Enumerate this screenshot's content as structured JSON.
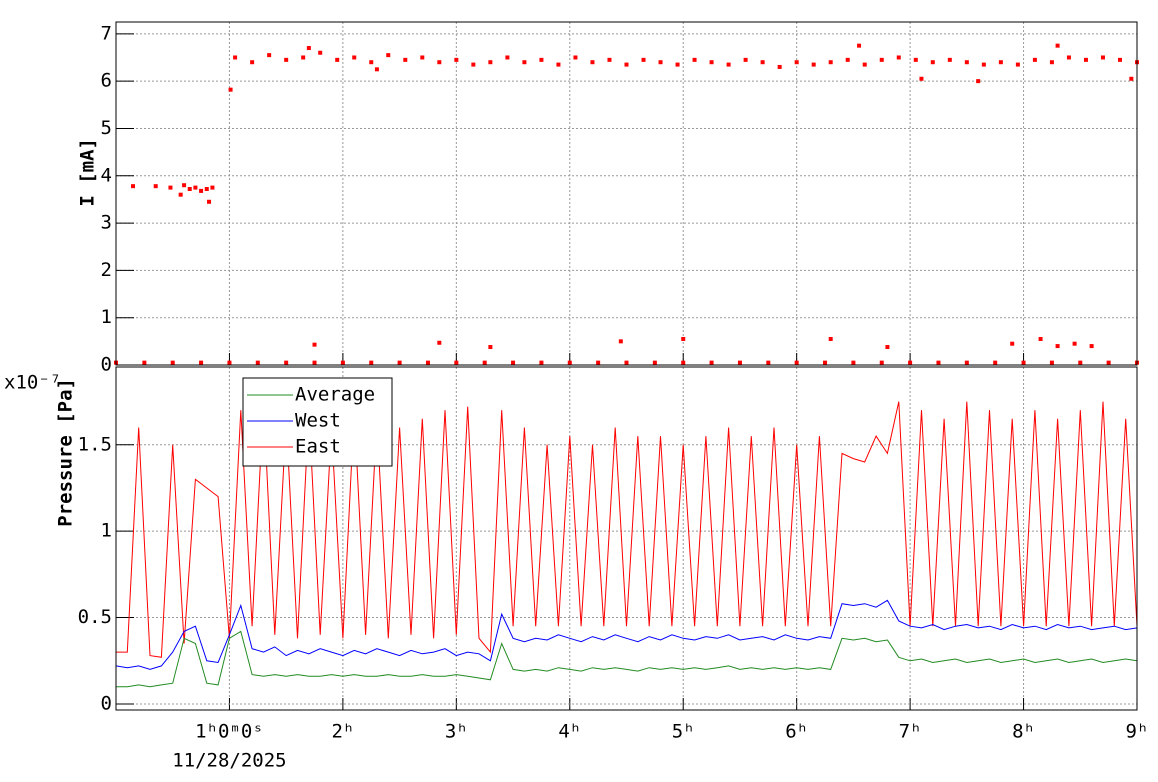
{
  "chart_data": [
    {
      "type": "scatter",
      "ylabel": "I [mA]",
      "color": "#ff0000",
      "xlim": [
        0,
        9
      ],
      "ylim": [
        0,
        7.25
      ],
      "yticks": [
        0,
        1,
        2,
        3,
        4,
        5,
        6,
        7
      ],
      "grid": true,
      "x": [
        0,
        0.25,
        0.5,
        0.75,
        1.0,
        1.25,
        1.5,
        1.75,
        2.0,
        2.25,
        2.5,
        2.75,
        3.0,
        3.25,
        3.5,
        3.75,
        4.0,
        4.25,
        4.5,
        4.75,
        5.0,
        5.25,
        5.5,
        5.75,
        6.0,
        6.25,
        6.5,
        6.75,
        7.0,
        7.25,
        7.5,
        7.75,
        8.0,
        8.25,
        8.5,
        8.75,
        9.0,
        1.75,
        2.85,
        3.3,
        4.45,
        5.0,
        6.3,
        6.8,
        7.9,
        8.15,
        8.3,
        8.45,
        8.6,
        0.15,
        0.35,
        0.48,
        0.57,
        0.6,
        0.65,
        0.7,
        0.75,
        0.8,
        0.82,
        0.85,
        1.01,
        1.05,
        1.2,
        1.35,
        1.5,
        1.65,
        1.8,
        1.95,
        2.1,
        2.25,
        2.4,
        2.55,
        2.7,
        2.85,
        3.0,
        3.15,
        3.3,
        3.45,
        3.6,
        3.75,
        3.9,
        4.05,
        4.2,
        4.35,
        4.5,
        4.65,
        4.8,
        4.95,
        5.1,
        5.25,
        5.4,
        5.55,
        5.7,
        5.85,
        6.0,
        6.15,
        6.3,
        6.45,
        6.6,
        6.75,
        6.9,
        7.05,
        7.2,
        7.35,
        7.5,
        7.65,
        7.8,
        7.95,
        8.1,
        8.25,
        8.4,
        8.55,
        8.7,
        8.85,
        9.0,
        1.7,
        6.55,
        7.1,
        7.6,
        8.3,
        8.95,
        2.3
      ],
      "values": [
        0.05,
        0.05,
        0.05,
        0.05,
        0.05,
        0.05,
        0.05,
        0.05,
        0.05,
        0.05,
        0.05,
        0.05,
        0.05,
        0.05,
        0.05,
        0.05,
        0.05,
        0.05,
        0.05,
        0.05,
        0.05,
        0.05,
        0.05,
        0.05,
        0.05,
        0.05,
        0.05,
        0.05,
        0.05,
        0.05,
        0.05,
        0.05,
        0.05,
        0.05,
        0.05,
        0.05,
        0.05,
        0.43,
        0.47,
        0.38,
        0.5,
        0.55,
        0.55,
        0.38,
        0.45,
        0.55,
        0.4,
        0.45,
        0.4,
        3.78,
        3.78,
        3.75,
        3.6,
        3.8,
        3.72,
        3.75,
        3.68,
        3.72,
        3.45,
        3.75,
        5.82,
        6.5,
        6.4,
        6.55,
        6.45,
        6.5,
        6.6,
        6.45,
        6.5,
        6.4,
        6.55,
        6.45,
        6.5,
        6.4,
        6.45,
        6.35,
        6.4,
        6.5,
        6.4,
        6.45,
        6.35,
        6.5,
        6.4,
        6.45,
        6.35,
        6.45,
        6.4,
        6.35,
        6.45,
        6.4,
        6.35,
        6.45,
        6.4,
        6.3,
        6.4,
        6.35,
        6.4,
        6.45,
        6.35,
        6.45,
        6.5,
        6.45,
        6.4,
        6.45,
        6.4,
        6.35,
        6.4,
        6.35,
        6.45,
        6.4,
        6.5,
        6.45,
        6.5,
        6.45,
        6.4,
        6.7,
        6.75,
        6.05,
        6.0,
        6.75,
        6.05,
        6.25
      ]
    },
    {
      "type": "line",
      "ylabel": "Pressure [Pa]",
      "y_multiplier": "x10⁻⁷",
      "x_date": "11/28/2025",
      "xlim": [
        0,
        9
      ],
      "ylim": [
        -0.035,
        1.95
      ],
      "yticks": [
        0,
        0.5,
        1,
        1.5
      ],
      "grid": true,
      "legend": "top-left",
      "xticks": [
        {
          "value": 1,
          "label": "1ʰ0ᵐ0ˢ"
        },
        {
          "value": 2,
          "label": "2ʰ"
        },
        {
          "value": 3,
          "label": "3ʰ"
        },
        {
          "value": 4,
          "label": "4ʰ"
        },
        {
          "value": 5,
          "label": "5ʰ"
        },
        {
          "value": 6,
          "label": "6ʰ"
        },
        {
          "value": 7,
          "label": "7ʰ"
        },
        {
          "value": 8,
          "label": "8ʰ"
        },
        {
          "value": 9,
          "label": "9ʰ"
        }
      ],
      "x": [
        0,
        0.1,
        0.2,
        0.3,
        0.4,
        0.5,
        0.6,
        0.7,
        0.8,
        0.9,
        1.0,
        1.1,
        1.2,
        1.3,
        1.4,
        1.5,
        1.6,
        1.7,
        1.8,
        1.9,
        2.0,
        2.1,
        2.2,
        2.3,
        2.4,
        2.5,
        2.6,
        2.7,
        2.8,
        2.9,
        3.0,
        3.1,
        3.2,
        3.3,
        3.4,
        3.5,
        3.6,
        3.7,
        3.8,
        3.9,
        4.0,
        4.1,
        4.2,
        4.3,
        4.4,
        4.5,
        4.6,
        4.7,
        4.8,
        4.9,
        5.0,
        5.1,
        5.2,
        5.3,
        5.4,
        5.5,
        5.6,
        5.7,
        5.8,
        5.9,
        6.0,
        6.1,
        6.2,
        6.3,
        6.4,
        6.5,
        6.6,
        6.7,
        6.8,
        6.9,
        7.0,
        7.1,
        7.2,
        7.3,
        7.4,
        7.5,
        7.6,
        7.7,
        7.8,
        7.9,
        8.0,
        8.1,
        8.2,
        8.3,
        8.4,
        8.5,
        8.6,
        8.7,
        8.8,
        8.9,
        9.0
      ],
      "series": [
        {
          "name": "Average",
          "color": "#228b22",
          "values": [
            0.1,
            0.1,
            0.11,
            0.1,
            0.11,
            0.12,
            0.38,
            0.35,
            0.12,
            0.11,
            0.38,
            0.42,
            0.17,
            0.16,
            0.17,
            0.16,
            0.17,
            0.16,
            0.16,
            0.17,
            0.16,
            0.17,
            0.16,
            0.16,
            0.17,
            0.16,
            0.16,
            0.17,
            0.16,
            0.16,
            0.17,
            0.16,
            0.15,
            0.14,
            0.35,
            0.2,
            0.19,
            0.2,
            0.19,
            0.21,
            0.2,
            0.19,
            0.21,
            0.2,
            0.21,
            0.2,
            0.19,
            0.21,
            0.2,
            0.21,
            0.2,
            0.21,
            0.2,
            0.21,
            0.22,
            0.2,
            0.21,
            0.2,
            0.21,
            0.2,
            0.21,
            0.2,
            0.21,
            0.2,
            0.38,
            0.37,
            0.38,
            0.36,
            0.37,
            0.27,
            0.25,
            0.26,
            0.24,
            0.25,
            0.26,
            0.24,
            0.25,
            0.26,
            0.24,
            0.25,
            0.26,
            0.24,
            0.25,
            0.26,
            0.24,
            0.25,
            0.26,
            0.24,
            0.25,
            0.26,
            0.25
          ]
        },
        {
          "name": "West",
          "color": "#0000ff",
          "values": [
            0.22,
            0.21,
            0.22,
            0.2,
            0.22,
            0.3,
            0.42,
            0.45,
            0.25,
            0.24,
            0.4,
            0.57,
            0.32,
            0.3,
            0.33,
            0.28,
            0.31,
            0.29,
            0.32,
            0.3,
            0.28,
            0.31,
            0.29,
            0.32,
            0.3,
            0.28,
            0.31,
            0.29,
            0.3,
            0.32,
            0.28,
            0.3,
            0.29,
            0.25,
            0.52,
            0.38,
            0.36,
            0.38,
            0.37,
            0.4,
            0.38,
            0.36,
            0.39,
            0.37,
            0.4,
            0.38,
            0.36,
            0.39,
            0.37,
            0.4,
            0.38,
            0.37,
            0.39,
            0.38,
            0.4,
            0.37,
            0.38,
            0.39,
            0.37,
            0.4,
            0.38,
            0.37,
            0.39,
            0.38,
            0.58,
            0.57,
            0.58,
            0.56,
            0.6,
            0.48,
            0.45,
            0.44,
            0.46,
            0.43,
            0.45,
            0.46,
            0.44,
            0.45,
            0.43,
            0.46,
            0.44,
            0.45,
            0.43,
            0.46,
            0.44,
            0.45,
            0.43,
            0.44,
            0.45,
            0.43,
            0.44
          ]
        },
        {
          "name": "East",
          "color": "#ff0000",
          "values": [
            0.3,
            0.3,
            1.6,
            0.28,
            0.27,
            1.5,
            0.35,
            1.3,
            1.25,
            1.2,
            0.38,
            1.7,
            0.45,
            1.75,
            0.4,
            1.65,
            0.38,
            1.7,
            0.4,
            1.6,
            0.38,
            1.7,
            0.4,
            1.65,
            0.38,
            1.6,
            0.4,
            1.65,
            0.38,
            1.7,
            0.4,
            1.72,
            0.38,
            0.3,
            1.7,
            0.45,
            1.6,
            0.45,
            1.5,
            0.45,
            1.55,
            0.45,
            1.5,
            0.45,
            1.6,
            0.45,
            1.55,
            0.45,
            1.55,
            0.45,
            1.5,
            0.45,
            1.55,
            0.45,
            1.6,
            0.45,
            1.55,
            0.45,
            1.6,
            0.45,
            1.5,
            0.45,
            1.55,
            0.45,
            1.45,
            1.42,
            1.4,
            1.55,
            1.45,
            1.75,
            0.45,
            1.7,
            0.45,
            1.65,
            0.45,
            1.75,
            0.45,
            1.7,
            0.45,
            1.65,
            0.45,
            1.7,
            0.45,
            1.65,
            0.45,
            1.7,
            0.45,
            1.75,
            0.45,
            1.65,
            0.45
          ]
        }
      ]
    }
  ]
}
